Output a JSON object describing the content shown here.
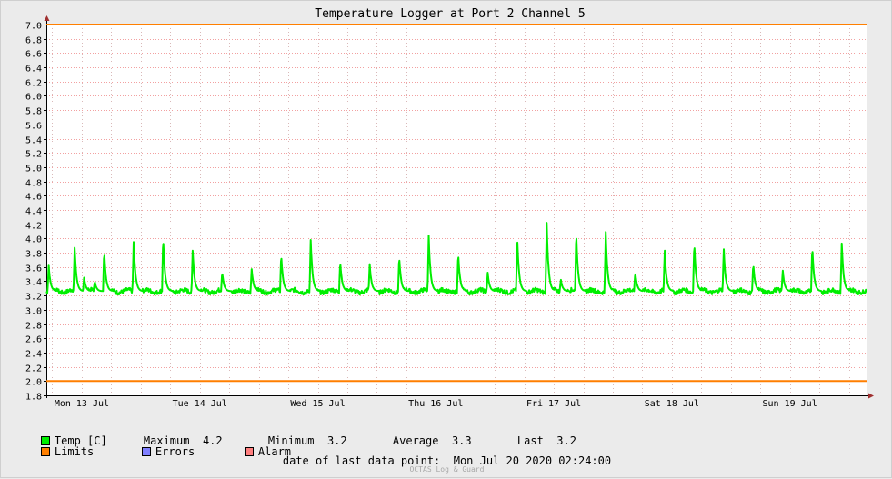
{
  "chart_data": {
    "type": "line",
    "title": "Temperature Logger at Port 2 Channel 5",
    "ylim": [
      1.8,
      7.0
    ],
    "y_ticks": [
      "1.8",
      "2.0",
      "2.2",
      "2.4",
      "2.6",
      "2.8",
      "3.0",
      "3.2",
      "3.4",
      "3.6",
      "3.8",
      "4.0",
      "4.2",
      "4.4",
      "4.6",
      "4.8",
      "5.0",
      "5.2",
      "5.4",
      "5.6",
      "5.8",
      "6.0",
      "6.2",
      "6.4",
      "6.6",
      "6.8",
      "7.0"
    ],
    "x_range_days": [
      12.7,
      19.65
    ],
    "x_tick_labels": [
      {
        "day": 13,
        "label": "Mon 13 Jul"
      },
      {
        "day": 14,
        "label": "Tue 14 Jul"
      },
      {
        "day": 15,
        "label": "Wed 15 Jul"
      },
      {
        "day": 16,
        "label": "Thu 16 Jul"
      },
      {
        "day": 17,
        "label": "Fri 17 Jul"
      },
      {
        "day": 18,
        "label": "Sat 18 Jul"
      },
      {
        "day": 19,
        "label": "Sun 19 Jul"
      }
    ],
    "grid": true,
    "limits": {
      "name": "Limits",
      "upper": 7.0,
      "lower": 2.0,
      "color": "#ff7f00"
    },
    "series": [
      {
        "name": "Temp [C]",
        "color": "#00ee00",
        "baseline": 3.26,
        "spikes": [
          [
            12.72,
            3.62
          ],
          [
            12.94,
            3.87
          ],
          [
            13.02,
            3.45
          ],
          [
            13.11,
            3.4
          ],
          [
            13.19,
            3.83
          ],
          [
            13.44,
            3.95
          ],
          [
            13.69,
            4.02
          ],
          [
            13.94,
            3.83
          ],
          [
            14.19,
            3.53
          ],
          [
            14.44,
            3.57
          ],
          [
            14.69,
            3.78
          ],
          [
            14.94,
            3.98
          ],
          [
            15.19,
            3.68
          ],
          [
            15.44,
            3.64
          ],
          [
            15.69,
            3.75
          ],
          [
            15.94,
            4.04
          ],
          [
            16.19,
            3.8
          ],
          [
            16.44,
            3.52
          ],
          [
            16.69,
            4.04
          ],
          [
            16.94,
            4.22
          ],
          [
            17.06,
            3.42
          ],
          [
            17.19,
            4.1
          ],
          [
            17.44,
            4.09
          ],
          [
            17.69,
            3.53
          ],
          [
            17.94,
            3.83
          ],
          [
            18.19,
            3.95
          ],
          [
            18.44,
            3.85
          ],
          [
            18.69,
            3.65
          ],
          [
            18.94,
            3.55
          ],
          [
            19.19,
            3.89
          ],
          [
            19.44,
            3.93
          ]
        ]
      }
    ]
  },
  "legend": {
    "temp_label": "Temp [C]",
    "limits_label": "Limits",
    "errors_label": "Errors",
    "alarm_label": "Alarm",
    "temp_color": "#00ee00",
    "limits_color": "#ff7f00",
    "errors_color": "#7f7fff",
    "alarm_color": "#ff7f7f"
  },
  "stats": {
    "max_label": "Maximum",
    "max_value": "4.2",
    "min_label": "Minimum",
    "min_value": "3.2",
    "avg_label": "Average",
    "avg_value": "3.3",
    "last_label": "Last",
    "last_value": "3.2"
  },
  "footer": {
    "last_point": "date of last data point:  Mon Jul 20 2020 02:24:00",
    "watermark": "OCTAS Log & Guard"
  }
}
